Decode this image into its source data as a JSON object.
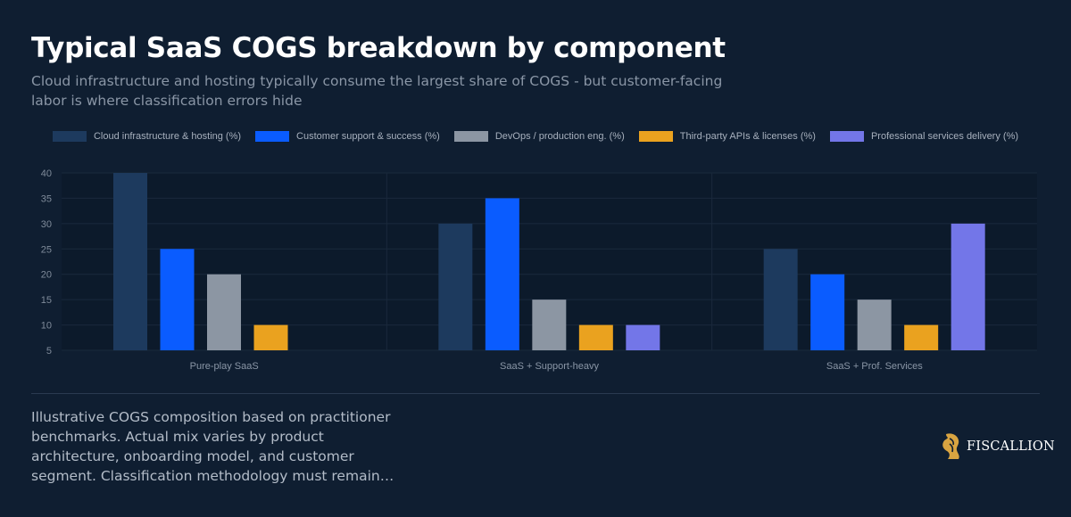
{
  "header": {
    "title": "Typical SaaS COGS breakdown by component",
    "subtitle": "Cloud infrastructure and hosting typically consume the largest share of COGS - but customer-facing labor is where classification errors hide"
  },
  "footer": {
    "note": "Illustrative COGS composition based on practitioner benchmarks. Actual mix varies by product architecture, onboarding model, and customer segment. Classification methodology must remain…",
    "brand": "FISCALLION"
  },
  "colors": {
    "background": "#0f1e31",
    "plot_background": "#0c1a2b",
    "brand_gold": "#d9a441"
  },
  "chart_data": {
    "type": "bar",
    "title": "",
    "xlabel": "",
    "ylabel": "",
    "ylim": [
      5,
      40
    ],
    "yticks": [
      5,
      10,
      15,
      20,
      25,
      30,
      35,
      40
    ],
    "grid": true,
    "legend_position": "top-center",
    "categories": [
      "Pure-play SaaS",
      "SaaS + Support-heavy",
      "SaaS + Prof. Services"
    ],
    "series": [
      {
        "name": "Cloud infrastructure & hosting (%)",
        "color": "#1d3a5e",
        "values": [
          40,
          30,
          25
        ]
      },
      {
        "name": "Customer support & success (%)",
        "color": "#0a5cff",
        "values": [
          25,
          35,
          20
        ]
      },
      {
        "name": "DevOps / production eng. (%)",
        "color": "#8c96a3",
        "values": [
          20,
          15,
          15
        ]
      },
      {
        "name": "Third-party APIs & licenses (%)",
        "color": "#eaa21f",
        "values": [
          10,
          10,
          10
        ]
      },
      {
        "name": "Professional services delivery (%)",
        "color": "#7376e8",
        "values": [
          null,
          10,
          30
        ]
      }
    ]
  }
}
